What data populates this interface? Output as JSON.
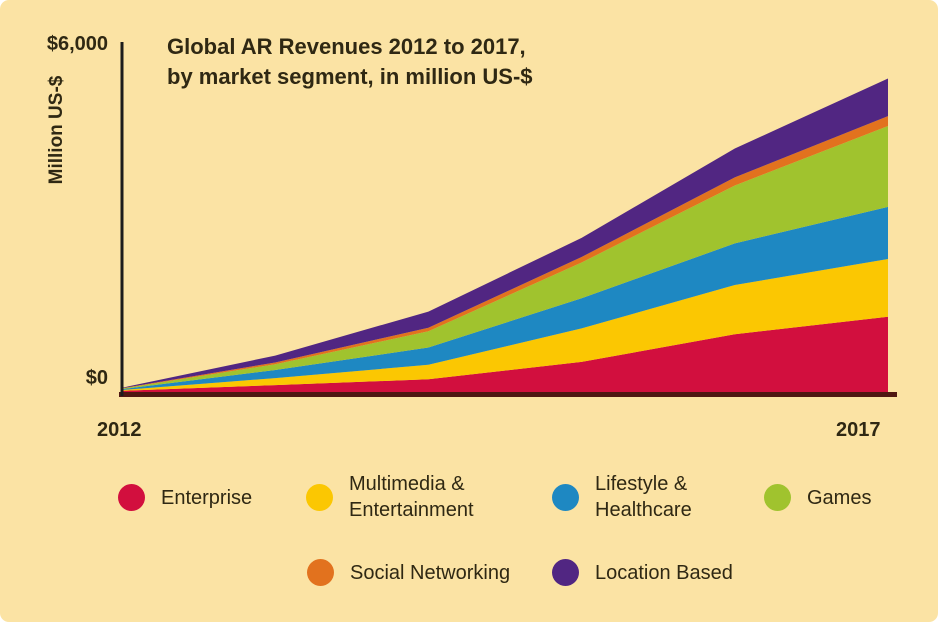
{
  "header": {
    "title_line1": "Global AR Revenues 2012 to 2017,",
    "title_line2": "by market segment, in million US-$"
  },
  "axes": {
    "y_top_label": "$6,000",
    "y_zero_label": "$0",
    "y_axis_title": "Million US-$",
    "x_start_label": "2012",
    "x_end_label": "2017"
  },
  "legend": {
    "items": [
      {
        "label_lines": [
          "Enterprise"
        ],
        "color": "#d20f3e"
      },
      {
        "label_lines": [
          "Multimedia &",
          "Entertainment"
        ],
        "color": "#fbc702"
      },
      {
        "label_lines": [
          "Lifestyle &",
          "Healthcare"
        ],
        "color": "#1e88c2"
      },
      {
        "label_lines": [
          "Games"
        ],
        "color": "#a0c32e"
      },
      {
        "label_lines": [
          "Social Networking"
        ],
        "color": "#e2721e"
      },
      {
        "label_lines": [
          "Location Based"
        ],
        "color": "#512682"
      }
    ]
  },
  "colors": {
    "background": "#fbe3a4",
    "text": "#2f2813",
    "y_axis_line": "#1c1c1c",
    "x_axis_line": "#4f1712"
  },
  "chart_data": {
    "type": "area",
    "stacked": true,
    "title": "Global AR Revenues 2012 to 2017, by market segment, in million US-$",
    "ylabel": "Million US-$",
    "ylim": [
      0,
      6000
    ],
    "yticks_shown": [
      "$0",
      "$6,000"
    ],
    "xticks_shown": [
      "2012",
      "2017"
    ],
    "grid": false,
    "legend_position": "bottom",
    "x": [
      2012,
      2013,
      2014,
      2015,
      2016,
      2017
    ],
    "series": [
      {
        "name": "Enterprise",
        "color": "#d20f3e",
        "values": [
          20,
          120,
          220,
          520,
          1000,
          1300
        ]
      },
      {
        "name": "Multimedia & Entertainment",
        "color": "#fbc702",
        "values": [
          15,
          120,
          250,
          580,
          850,
          1000
        ]
      },
      {
        "name": "Lifestyle & Healthcare",
        "color": "#1e88c2",
        "values": [
          15,
          140,
          300,
          520,
          720,
          900
        ]
      },
      {
        "name": "Games",
        "color": "#a0c32e",
        "values": [
          10,
          100,
          280,
          620,
          1000,
          1400
        ]
      },
      {
        "name": "Social Networking",
        "color": "#e2721e",
        "values": [
          5,
          30,
          60,
          95,
          140,
          170
        ]
      },
      {
        "name": "Location Based",
        "color": "#512682",
        "values": [
          10,
          120,
          280,
          330,
          500,
          650
        ]
      }
    ],
    "totals_by_year": [
      75,
      630,
      1390,
      2665,
      4210,
      5420
    ]
  }
}
